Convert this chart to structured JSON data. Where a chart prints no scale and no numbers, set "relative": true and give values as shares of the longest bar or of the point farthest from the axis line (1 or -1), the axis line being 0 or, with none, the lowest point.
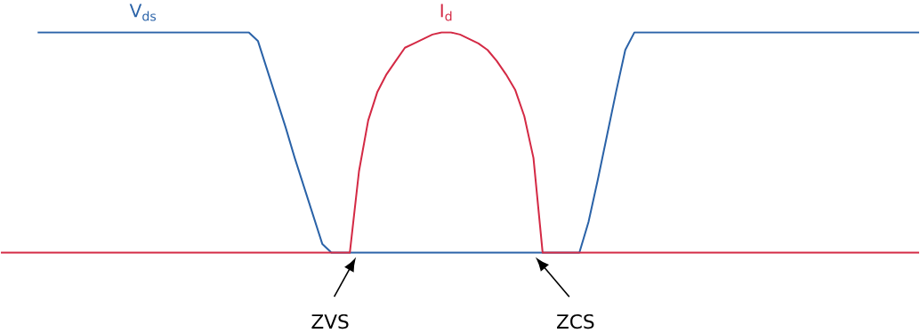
{
  "chart_data": {
    "type": "line",
    "relative": true,
    "line_style": "solid",
    "marker": "none",
    "categories": [
      null,
      null,
      null,
      null,
      null,
      null,
      null,
      null,
      null,
      null,
      null,
      null,
      null,
      null,
      null,
      null,
      null,
      null,
      null,
      null,
      null,
      null,
      null,
      null,
      null,
      null,
      null,
      null,
      null,
      null,
      null,
      null,
      null,
      null,
      null,
      null,
      null,
      null,
      null,
      null,
      null,
      null,
      null,
      null,
      null,
      null,
      null,
      null,
      null,
      null,
      null,
      null,
      null,
      null,
      null,
      null,
      null,
      null,
      null,
      null,
      null,
      null,
      null,
      null,
      null,
      null,
      null,
      null,
      null,
      null,
      null,
      null,
      null,
      null,
      null,
      null,
      null,
      null,
      null,
      null,
      null,
      null,
      null,
      null,
      null,
      null,
      null,
      null,
      null,
      null,
      null,
      null,
      null,
      null,
      null,
      null,
      null,
      null,
      null,
      null,
      null
    ],
    "series": [
      {
        "name": "V$_{ds}$",
        "color": "#2b63a8",
        "values": [
          null,
          null,
          null,
          null,
          1,
          1,
          1,
          1,
          1,
          1,
          1,
          1,
          1,
          1,
          1,
          1,
          1,
          1,
          1,
          1,
          1,
          1,
          1,
          1,
          1,
          1,
          1,
          1,
          0.96,
          0.83,
          0.7,
          0.57,
          0.43,
          0.3,
          0.17,
          0.04,
          0,
          0,
          0,
          0,
          0,
          0,
          0,
          0,
          0,
          0,
          0,
          0,
          0,
          0,
          0,
          0,
          0,
          0,
          0,
          0,
          0,
          0,
          0,
          0,
          0,
          0,
          0,
          0,
          0.14,
          0.33,
          0.53,
          0.73,
          0.92,
          1,
          1,
          1,
          1,
          1,
          1,
          1,
          1,
          1,
          1,
          1,
          1,
          1,
          1,
          1,
          1,
          1,
          1,
          1,
          1,
          1,
          1,
          1,
          1,
          1,
          1,
          1,
          1,
          1,
          1,
          1,
          1
        ]
      },
      {
        "name": "I$_{d}$",
        "color": "#d42a45",
        "values": [
          0,
          0,
          0,
          0,
          0,
          0,
          0,
          0,
          0,
          0,
          0,
          0,
          0,
          0,
          0,
          0,
          0,
          0,
          0,
          0,
          0,
          0,
          0,
          0,
          0,
          0,
          0,
          0,
          0,
          0,
          0,
          0,
          0,
          0,
          0,
          0,
          0,
          0,
          0,
          0.37,
          0.6,
          0.73,
          0.81,
          0.87,
          0.93,
          0.95,
          0.97,
          0.99,
          1,
          1,
          0.99,
          0.97,
          0.95,
          0.92,
          0.87,
          0.81,
          0.74,
          0.62,
          0.43,
          0,
          0,
          0,
          0,
          0,
          0,
          0,
          0,
          0,
          0,
          0,
          0,
          0,
          0,
          0,
          0,
          0,
          0,
          0,
          0,
          0,
          0,
          0,
          0,
          0,
          0,
          0,
          0,
          0,
          0,
          0,
          0,
          0,
          0,
          0,
          0,
          0,
          0,
          0,
          0,
          0,
          0
        ]
      }
    ],
    "annotations": [
      "ZVS",
      "ZCS"
    ]
  }
}
